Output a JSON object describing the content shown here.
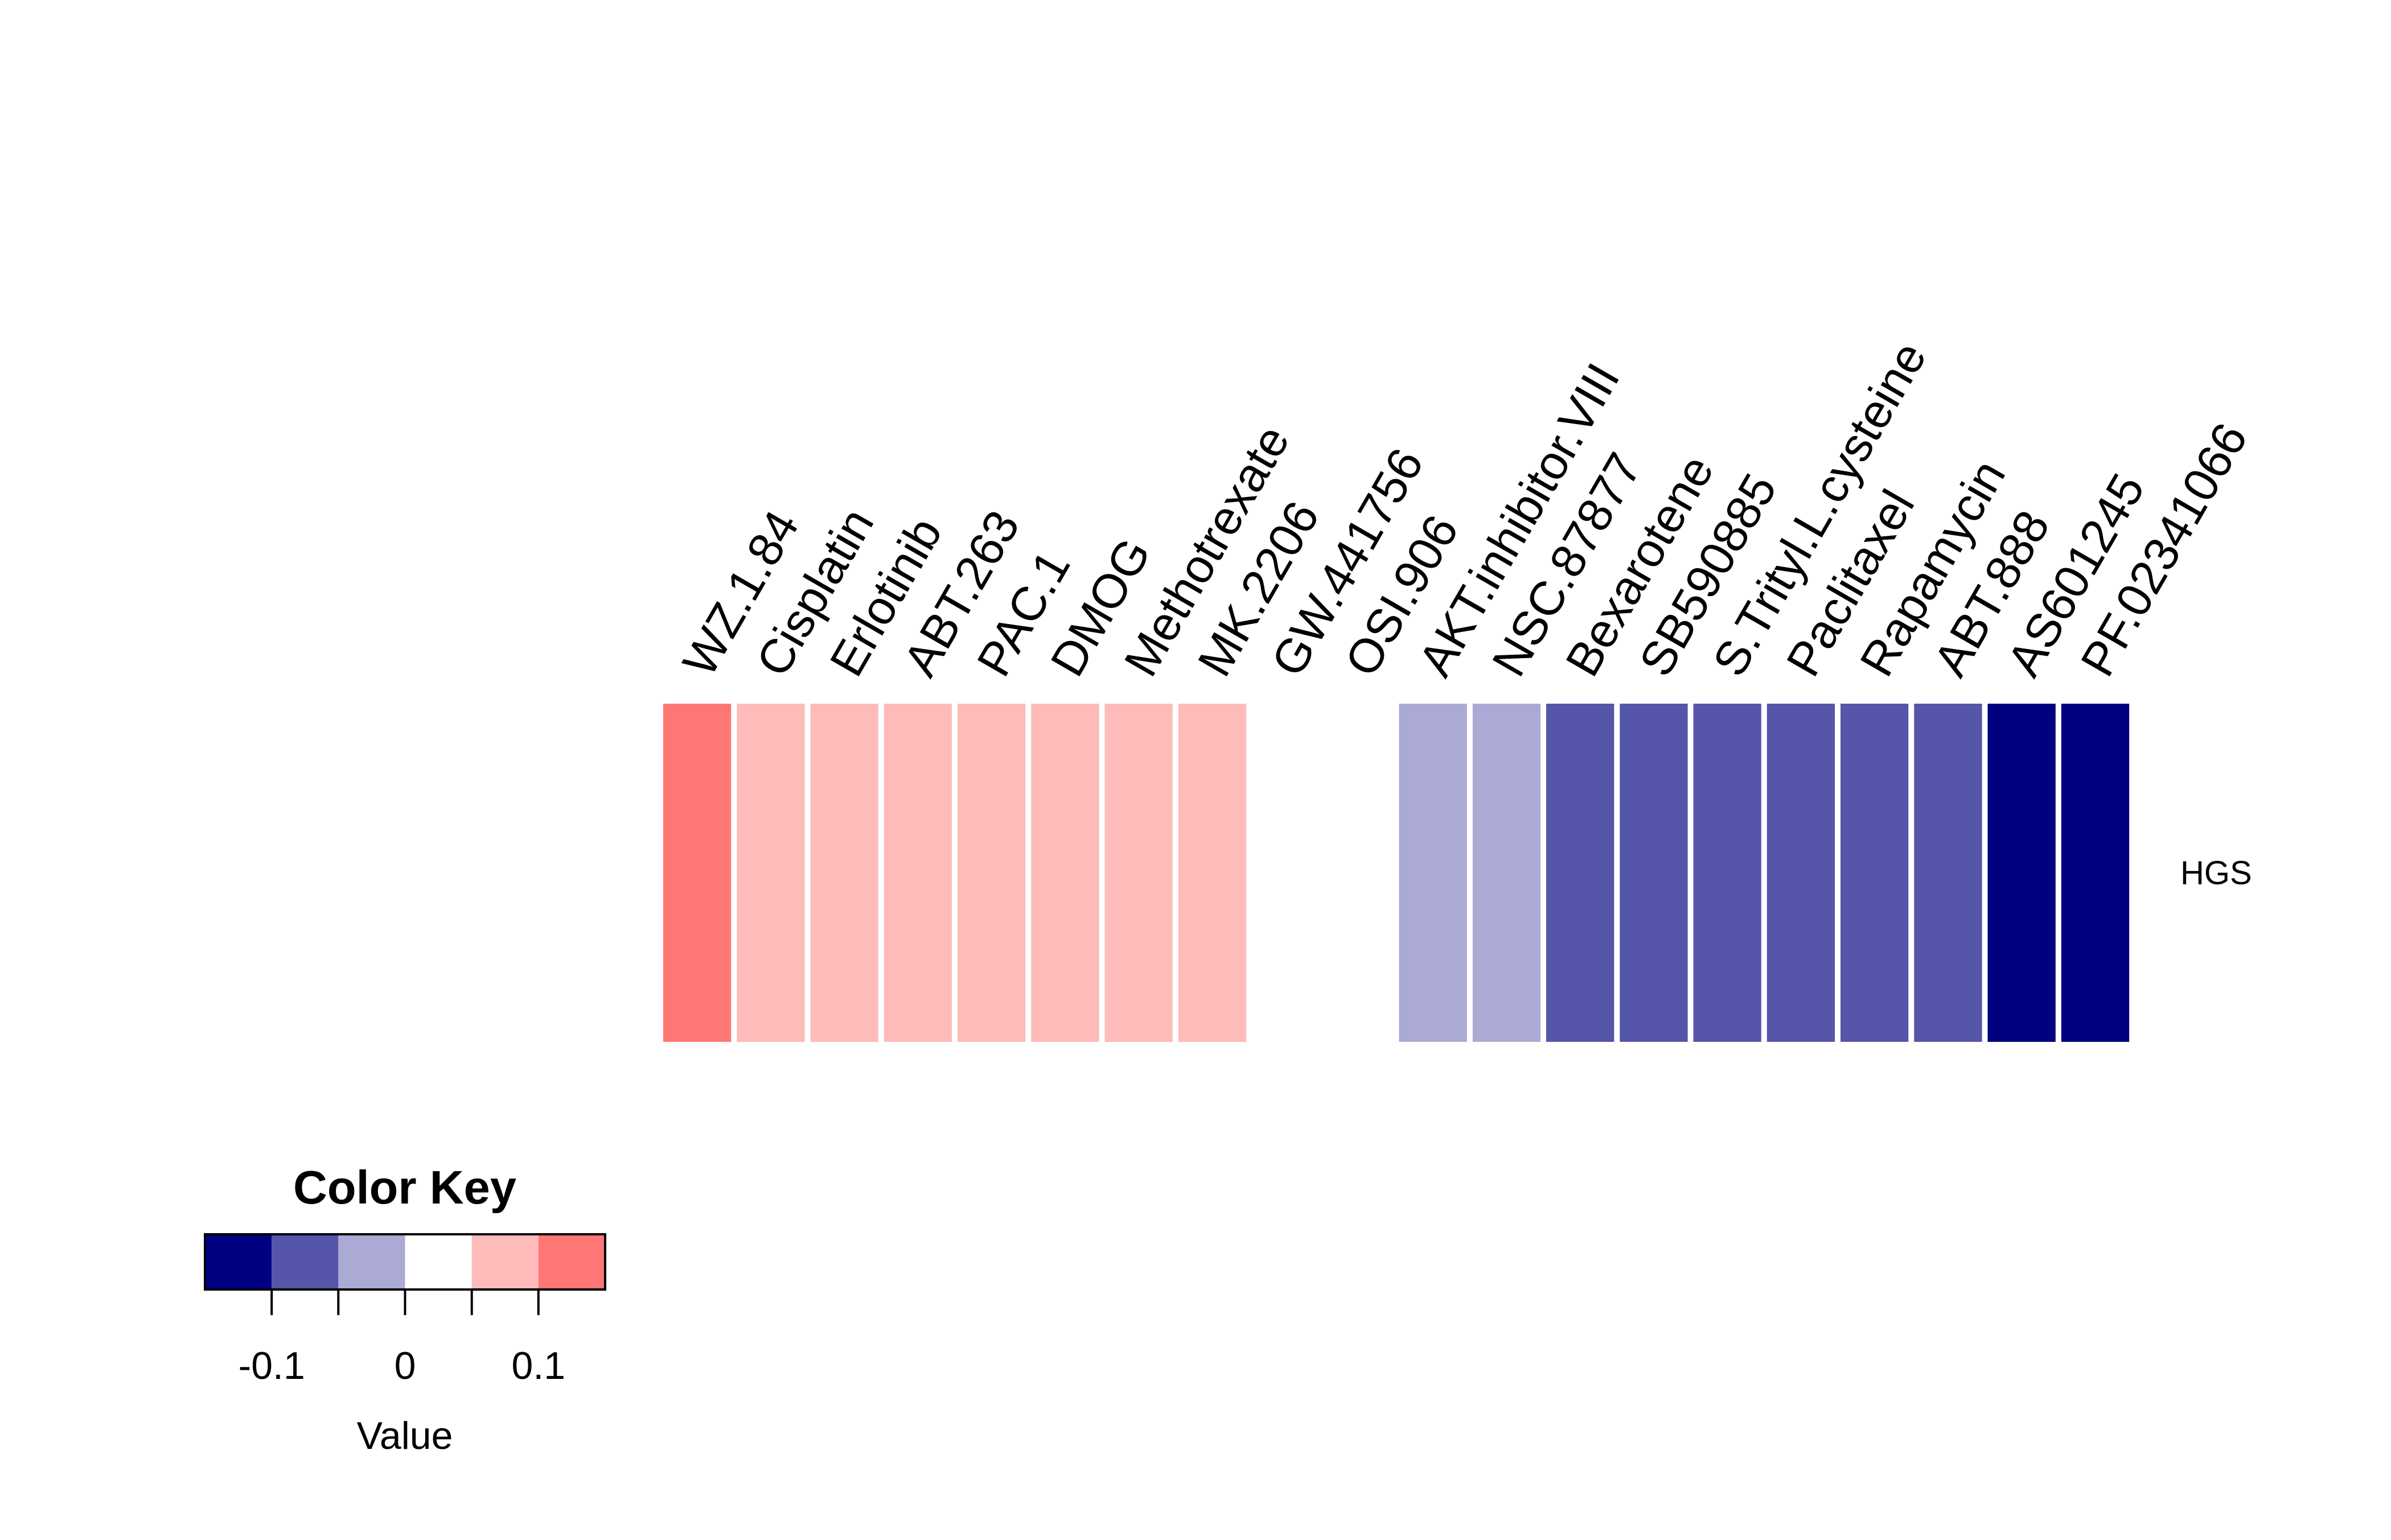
{
  "chart_data": {
    "type": "heatmap",
    "rows": [
      "HGS"
    ],
    "columns": [
      "WZ.1.84",
      "Cisplatin",
      "Erlotinib",
      "ABT.263",
      "PAC.1",
      "DMOG",
      "Methotrexate",
      "MK.2206",
      "GW.441756",
      "OSI.906",
      "AKT.inhibitor.VIII",
      "NSC.87877",
      "Bexarotene",
      "SB590885",
      "S.Trityl.L.cysteine",
      "Paclitaxel",
      "Rapamycin",
      "ABT.888",
      "AS601245",
      "PF.02341066"
    ],
    "values": [
      [
        0.125,
        0.075,
        0.075,
        0.075,
        0.075,
        0.075,
        0.075,
        0.075,
        0.025,
        0.025,
        -0.025,
        -0.025,
        -0.075,
        -0.075,
        -0.075,
        -0.075,
        -0.075,
        -0.075,
        -0.125,
        -0.125
      ]
    ],
    "color_key": {
      "title": "Color Key",
      "xlabel": "Value",
      "breaks": [
        -0.15,
        -0.1,
        -0.05,
        0,
        0.05,
        0.1,
        0.15
      ],
      "colors": [
        "#000080",
        "#5555a9",
        "#aaaad4",
        "#ffffff",
        "#ffbaba",
        "#ff7676",
        "#ff3333"
      ],
      "tick_values": [
        -0.1,
        -0.05,
        0,
        0.05,
        0.1
      ],
      "tick_labels": [
        "-0.1",
        "",
        "0",
        "",
        "0.1"
      ]
    }
  }
}
